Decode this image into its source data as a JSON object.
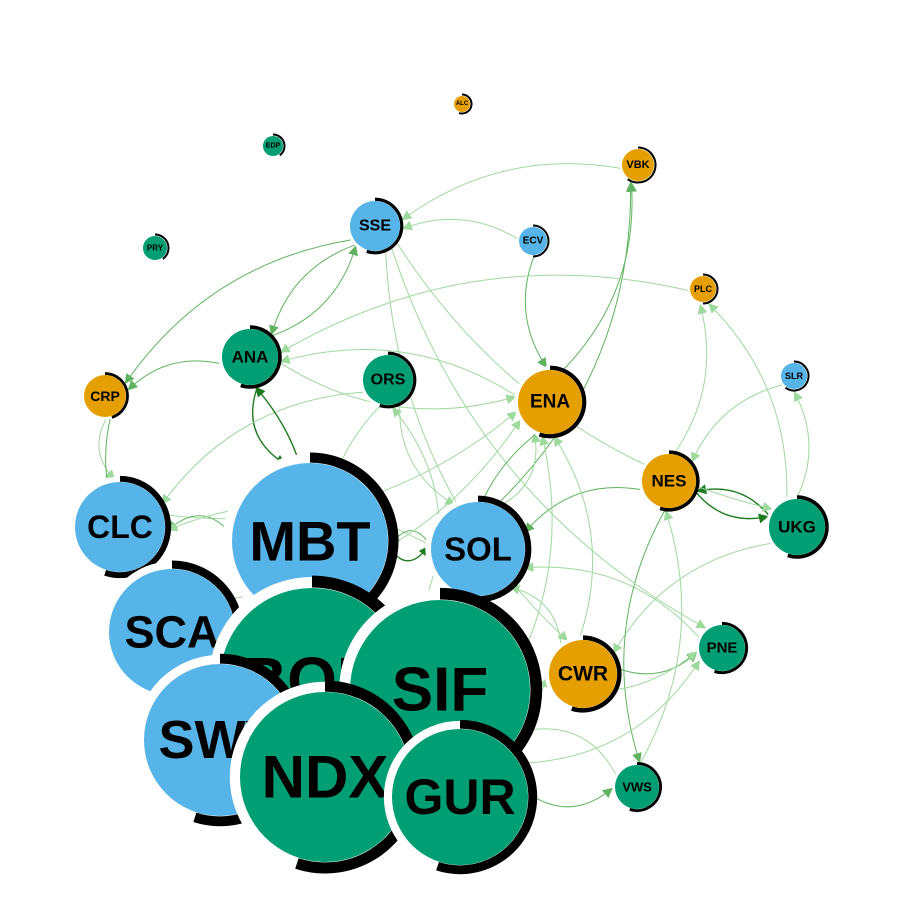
{
  "colors": {
    "teal": "#009E73",
    "blue": "#56B4E9",
    "orange": "#E69F00",
    "ring": "#000000",
    "edge_light": "#9ed99e",
    "edge_mid": "#5fb35f",
    "edge_dark": "#1e7a1e"
  },
  "nodes": [
    {
      "id": "ALC",
      "label": "ALC",
      "color": "orange",
      "size": 1,
      "ring": 0.55
    },
    {
      "id": "EDP",
      "label": "EDP",
      "color": "teal",
      "size": 1.2,
      "ring": 0.4
    },
    {
      "id": "VBK",
      "label": "VBK",
      "color": "orange",
      "size": 2,
      "ring": 0.6
    },
    {
      "id": "SSE",
      "label": "SSE",
      "color": "blue",
      "size": 3,
      "ring": 0.55
    },
    {
      "id": "ECV",
      "label": "ECV",
      "color": "blue",
      "size": 1.8,
      "ring": 0.5
    },
    {
      "id": "PRY",
      "label": "PRY",
      "color": "teal",
      "size": 1.5,
      "ring": 0.4
    },
    {
      "id": "PLC",
      "label": "PLC",
      "color": "orange",
      "size": 1.6,
      "ring": 0.5
    },
    {
      "id": "ANA",
      "label": "ANA",
      "color": "teal",
      "size": 3.5,
      "ring": 0.55
    },
    {
      "id": "ORS",
      "label": "ORS",
      "color": "teal",
      "size": 3,
      "ring": 0.55
    },
    {
      "id": "ENA",
      "label": "ENA",
      "color": "orange",
      "size": 3.9,
      "ring": 0.55
    },
    {
      "id": "CRP",
      "label": "CRP",
      "color": "orange",
      "size": 2.5,
      "ring": 0.45
    },
    {
      "id": "SLR",
      "label": "SLR",
      "color": "blue",
      "size": 1.8,
      "ring": 0.6
    },
    {
      "id": "NES",
      "label": "NES",
      "color": "orange",
      "size": 3.2,
      "ring": 0.55
    },
    {
      "id": "UKG",
      "label": "UKG",
      "color": "teal",
      "size": 3.4,
      "ring": 0.55
    },
    {
      "id": "CLC",
      "label": "CLC",
      "color": "blue",
      "size": 5.5,
      "ring": 0.55
    },
    {
      "id": "MBT",
      "label": "MBT",
      "color": "blue",
      "size": 10,
      "ring": 0.55
    },
    {
      "id": "SOL",
      "label": "SOL",
      "color": "blue",
      "size": 6,
      "ring": 0.55
    },
    {
      "id": "SCA",
      "label": "SCA",
      "color": "blue",
      "size": 8,
      "ring": 0.55
    },
    {
      "id": "BON",
      "label": "BON",
      "color": "teal",
      "size": 11,
      "ring": 0.55
    },
    {
      "id": "SIF",
      "label": "SIF",
      "color": "teal",
      "size": 11,
      "ring": 0.55
    },
    {
      "id": "CWR",
      "label": "CWR",
      "color": "orange",
      "size": 4,
      "ring": 0.55
    },
    {
      "id": "PNE",
      "label": "PNE",
      "color": "teal",
      "size": 3,
      "ring": 0.55
    },
    {
      "id": "SWV",
      "label": "SWV",
      "color": "blue",
      "size": 10,
      "ring": 0.55
    },
    {
      "id": "NDX",
      "label": "NDX",
      "color": "teal",
      "size": 11,
      "ring": 0.55
    },
    {
      "id": "GUR",
      "label": "GUR",
      "color": "teal",
      "size": 9.5,
      "ring": 0.55
    },
    {
      "id": "VWS",
      "label": "VWS",
      "color": "teal",
      "size": 2.8,
      "ring": 0.55
    }
  ],
  "edges": [
    [
      "VBK",
      "SSE",
      "light"
    ],
    [
      "ECV",
      "SSE",
      "light"
    ],
    [
      "SSE",
      "CRP",
      "mid"
    ],
    [
      "SSE",
      "ANA",
      "mid"
    ],
    [
      "ANA",
      "SSE",
      "mid"
    ],
    [
      "ANA",
      "CRP",
      "mid"
    ],
    [
      "ANA",
      "MBT",
      "dark"
    ],
    [
      "ENA",
      "ANA",
      "light"
    ],
    [
      "ENA",
      "VBK",
      "mid"
    ],
    [
      "ECV",
      "ENA",
      "mid"
    ],
    [
      "SOL",
      "VBK",
      "mid"
    ],
    [
      "PLC",
      "ANA",
      "light"
    ],
    [
      "NES",
      "PLC",
      "light"
    ],
    [
      "NES",
      "UKG",
      "dark"
    ],
    [
      "UKG",
      "NES",
      "dark"
    ],
    [
      "UKG",
      "SLR",
      "light"
    ],
    [
      "SLR",
      "NES",
      "light"
    ],
    [
      "UKG",
      "PLC",
      "light"
    ],
    [
      "NES",
      "SOL",
      "mid"
    ],
    [
      "CRP",
      "CLC",
      "light"
    ],
    [
      "CRP",
      "SCA",
      "mid"
    ],
    [
      "CLC",
      "ENA",
      "light"
    ],
    [
      "MBT",
      "CLC",
      "mid"
    ],
    [
      "SOL",
      "CLC",
      "light"
    ],
    [
      "SOL",
      "MBT",
      "mid"
    ],
    [
      "SOL",
      "ENA",
      "light"
    ],
    [
      "ORS",
      "CLC",
      "light"
    ],
    [
      "ORS",
      "SOL",
      "light"
    ],
    [
      "ORS",
      "BON",
      "light"
    ],
    [
      "SIF",
      "ORS",
      "light"
    ],
    [
      "BON",
      "ANA",
      "dark"
    ],
    [
      "CWR",
      "PNE",
      "mid"
    ],
    [
      "CWR",
      "ENA",
      "light"
    ],
    [
      "CWR",
      "SOL",
      "light"
    ],
    [
      "PNE",
      "SOL",
      "light"
    ],
    [
      "UKG",
      "CWR",
      "light"
    ],
    [
      "NES",
      "VWS",
      "mid"
    ],
    [
      "VWS",
      "NES",
      "light"
    ],
    [
      "GUR",
      "VWS",
      "mid"
    ],
    [
      "SIF",
      "PNE",
      "light"
    ],
    [
      "GUR",
      "PNE",
      "light"
    ],
    [
      "SIF",
      "CWR",
      "light"
    ],
    [
      "VWS",
      "SIF",
      "light"
    ],
    [
      "SSE",
      "PNE",
      "light"
    ],
    [
      "SSE",
      "CWR",
      "light"
    ],
    [
      "SIF",
      "SOL",
      "light"
    ],
    [
      "GUR",
      "ENA",
      "light"
    ],
    [
      "SCA",
      "ENA",
      "light"
    ],
    [
      "MBT",
      "SOL",
      "dark"
    ],
    [
      "SWV",
      "CLC",
      "light"
    ],
    [
      "NDX",
      "SOL",
      "mid"
    ],
    [
      "CLC",
      "SCA",
      "dark"
    ],
    [
      "ENA",
      "SIF",
      "mid"
    ],
    [
      "SSE",
      "UKG",
      "light"
    ],
    [
      "ANA",
      "ENA",
      "light"
    ]
  ]
}
